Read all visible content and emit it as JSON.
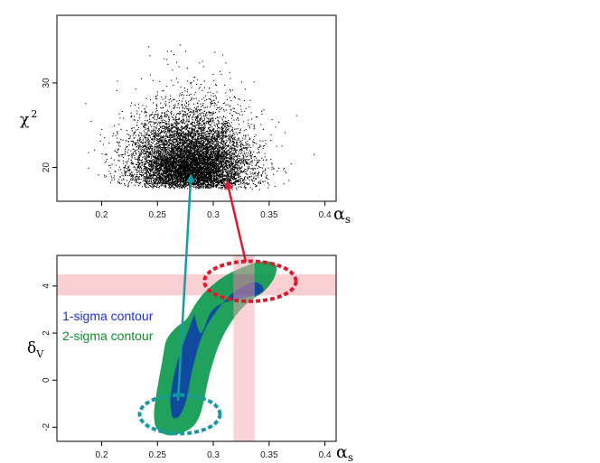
{
  "chart_data": [
    {
      "type": "scatter",
      "title": "",
      "xlabel": "α_s",
      "ylabel": "χ²",
      "xlabel_main": "α",
      "xlabel_sub": "s",
      "ylabel_main": "χ",
      "ylabel_sup": "2",
      "xlim": [
        0.16,
        0.41
      ],
      "ylim": [
        16,
        38
      ],
      "xticks": [
        "0.2",
        "0.25",
        "0.3",
        "0.35",
        "0.4"
      ],
      "yticks": [
        "20",
        "30"
      ],
      "description_points": {
        "density_peak": {
          "x": 0.28,
          "y": 20
        },
        "cloud_x_range": [
          0.22,
          0.38
        ],
        "cloud_y_range": [
          17.5,
          36
        ]
      }
    },
    {
      "type": "area",
      "title": "",
      "xlabel": "α_s",
      "ylabel": "δ_V",
      "xlabel_main": "α",
      "xlabel_sub": "s",
      "ylabel_main": "δ",
      "ylabel_sub": "V",
      "xlim": [
        0.16,
        0.41
      ],
      "ylim": [
        -2.6,
        5.3
      ],
      "xticks": [
        "0.2",
        "0.25",
        "0.3",
        "0.35",
        "0.4"
      ],
      "yticks": [
        "-2",
        "0",
        "2",
        "4"
      ],
      "series": [
        {
          "name": "1-sigma contour",
          "x": [
            0.283,
            0.268,
            0.262,
            0.262,
            0.264,
            0.27,
            0.276,
            0.282,
            0.293,
            0.315,
            0.336,
            0.345,
            0.341,
            0.328,
            0.31,
            0.298,
            0.289,
            0.283
          ],
          "y": [
            2.8,
            0.8,
            -0.6,
            -1.2,
            -1.6,
            -1.5,
            -0.8,
            0.6,
            2.2,
            3.6,
            4.15,
            3.9,
            3.65,
            3.5,
            3.3,
            2.9,
            2.0,
            2.8
          ]
        },
        {
          "name": "2-sigma contour",
          "x": [
            0.255,
            0.249,
            0.247,
            0.25,
            0.262,
            0.278,
            0.286,
            0.291,
            0.297,
            0.306,
            0.318,
            0.331,
            0.346,
            0.355,
            0.356,
            0.347,
            0.335,
            0.313,
            0.296,
            0.285,
            0.276,
            0.266,
            0.258,
            0.255
          ],
          "y": [
            1.0,
            -0.6,
            -1.5,
            -2.1,
            -2.35,
            -2.1,
            -1.7,
            -1.0,
            0.3,
            1.6,
            2.6,
            3.3,
            3.8,
            4.4,
            4.9,
            5.05,
            4.95,
            4.5,
            3.9,
            3.3,
            2.6,
            2.2,
            1.7,
            1.0
          ]
        }
      ],
      "legend": [
        "1-sigma contour",
        "2-sigma contour"
      ],
      "legend_placement": "left",
      "colors": {
        "sigma1": "#0f4a9e",
        "sigma2": "#0d9a4e",
        "band": "#f4a8b1",
        "overlap": "#8a5a8a"
      },
      "highlight_bands": {
        "delta_v": [
          3.6,
          4.5
        ],
        "alpha_s": [
          0.318,
          0.337
        ]
      },
      "ellipses": [
        {
          "center": [
            0.333,
            4.2
          ],
          "semi_axes": [
            0.041,
            0.85
          ],
          "color": "#e0182d"
        },
        {
          "center": [
            0.27,
            -1.45
          ],
          "semi_axes": [
            0.036,
            0.82
          ],
          "color": "#159aa5"
        }
      ]
    }
  ],
  "arrows": [
    {
      "color": "#179ba4",
      "from": "bottom-left-ellipse",
      "to": {
        "x": 0.28,
        "y": 19.5
      }
    },
    {
      "color": "#e0182d",
      "from": "top-right-ellipse",
      "to": {
        "x": 0.31,
        "y": 18.5
      }
    }
  ]
}
